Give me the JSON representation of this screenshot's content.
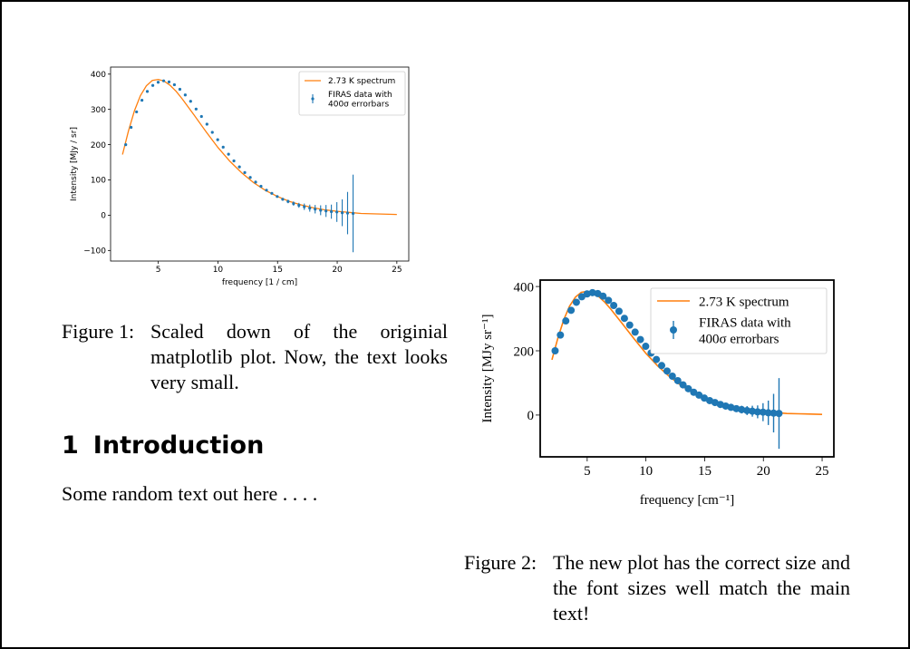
{
  "figure1": {
    "caption_label": "Figure 1:",
    "caption_text": "Scaled down of the originial matplotlib plot. Now, the text looks very small."
  },
  "figure2": {
    "caption_label": "Figure 2:",
    "caption_text": "The new plot has the correct size and the font sizes well match the main text!"
  },
  "section": {
    "number": "1",
    "title": "Introduction"
  },
  "body_text": "Some random text out here . . . .",
  "colors": {
    "spectrum": "#ff7f0e",
    "data": "#1f77b4"
  },
  "chart_data": [
    {
      "type": "line",
      "title": "",
      "xlabel": "frequency [1 / cm]",
      "ylabel": "Intensity [MJy / sr]",
      "xlim": [
        1,
        26
      ],
      "ylim": [
        -130,
        420
      ],
      "xticks": [
        5,
        10,
        15,
        20,
        25
      ],
      "yticks": [
        -100,
        0,
        100,
        200,
        300,
        400
      ],
      "xtick_labels": [
        "5",
        "10",
        "15",
        "20",
        "25"
      ],
      "ytick_labels": [
        "−100",
        "0",
        "100",
        "200",
        "300",
        "400"
      ],
      "legend_position": "top-right",
      "legend": [
        "2.73 K spectrum",
        "FIRAS data with 400σ errorbars"
      ],
      "series": [
        {
          "name": "2.73 K spectrum",
          "style": "line",
          "x": [
            2.0,
            2.5,
            3.0,
            3.5,
            4.0,
            4.5,
            5.0,
            5.5,
            6.0,
            6.5,
            7.0,
            8.0,
            9.0,
            10.0,
            11.0,
            12.0,
            13.0,
            14.0,
            15.0,
            16.0,
            17.0,
            18.0,
            19.0,
            20.0,
            21.0,
            22.0,
            23.0,
            24.0,
            25.0
          ],
          "y": [
            172,
            239,
            296,
            339,
            367,
            382,
            385,
            380,
            368,
            351,
            330,
            284,
            237,
            192,
            153,
            120,
            92,
            70,
            53,
            39,
            29,
            21,
            15,
            11,
            8,
            5,
            4,
            3,
            2
          ]
        },
        {
          "name": "FIRAS data with 400σ errorbars",
          "style": "errorbar",
          "x": [
            2.27,
            2.72,
            3.18,
            3.63,
            4.08,
            4.54,
            4.99,
            5.45,
            5.9,
            6.35,
            6.81,
            7.26,
            7.71,
            8.17,
            8.62,
            9.08,
            9.53,
            9.98,
            10.44,
            10.89,
            11.34,
            11.8,
            12.25,
            12.71,
            13.16,
            13.61,
            14.07,
            14.52,
            14.97,
            15.43,
            15.88,
            16.34,
            16.79,
            17.24,
            17.7,
            18.15,
            18.61,
            19.06,
            19.51,
            19.97,
            20.42,
            20.87,
            21.33
          ],
          "y": [
            200,
            249,
            293,
            326,
            351,
            368,
            377,
            381,
            378,
            370,
            357,
            341,
            323,
            301,
            280,
            258,
            235,
            214,
            193,
            173,
            154,
            137,
            121,
            107,
            94,
            82,
            71,
            62,
            53,
            45,
            39,
            33,
            28,
            24,
            20,
            17,
            14,
            12,
            10,
            9,
            7,
            6,
            5
          ],
          "err": [
            2,
            2,
            2,
            2,
            2,
            2,
            2,
            2,
            2,
            2,
            2,
            2,
            2,
            2,
            2,
            2,
            2,
            2,
            2,
            2,
            2,
            2,
            2,
            2,
            2,
            2,
            2,
            2,
            3,
            4,
            5,
            6,
            7,
            9,
            10,
            12,
            14,
            17,
            20,
            28,
            38,
            60,
            110
          ]
        }
      ]
    },
    {
      "type": "line",
      "title": "",
      "xlabel": "frequency [cm⁻¹]",
      "ylabel": "Intensity [MJy sr⁻¹]",
      "xlim": [
        1,
        26
      ],
      "ylim": [
        -130,
        420
      ],
      "xticks": [
        5,
        10,
        15,
        20,
        25
      ],
      "yticks": [
        0,
        200,
        400
      ],
      "xtick_labels": [
        "5",
        "10",
        "15",
        "20",
        "25"
      ],
      "ytick_labels": [
        "0",
        "200",
        "400"
      ],
      "legend_position": "top-right",
      "legend": [
        "2.73 K spectrum",
        "FIRAS data with 400σ errorbars"
      ],
      "series": [
        {
          "name": "2.73 K spectrum",
          "style": "line",
          "x": [
            2.0,
            2.5,
            3.0,
            3.5,
            4.0,
            4.5,
            5.0,
            5.5,
            6.0,
            6.5,
            7.0,
            8.0,
            9.0,
            10.0,
            11.0,
            12.0,
            13.0,
            14.0,
            15.0,
            16.0,
            17.0,
            18.0,
            19.0,
            20.0,
            21.0,
            22.0,
            23.0,
            24.0,
            25.0
          ],
          "y": [
            172,
            239,
            296,
            339,
            367,
            382,
            385,
            380,
            368,
            351,
            330,
            284,
            237,
            192,
            153,
            120,
            92,
            70,
            53,
            39,
            29,
            21,
            15,
            11,
            8,
            5,
            4,
            3,
            2
          ]
        },
        {
          "name": "FIRAS data with 400σ errorbars",
          "style": "errorbar",
          "x": [
            2.27,
            2.72,
            3.18,
            3.63,
            4.08,
            4.54,
            4.99,
            5.45,
            5.9,
            6.35,
            6.81,
            7.26,
            7.71,
            8.17,
            8.62,
            9.08,
            9.53,
            9.98,
            10.44,
            10.89,
            11.34,
            11.8,
            12.25,
            12.71,
            13.16,
            13.61,
            14.07,
            14.52,
            14.97,
            15.43,
            15.88,
            16.34,
            16.79,
            17.24,
            17.7,
            18.15,
            18.61,
            19.06,
            19.51,
            19.97,
            20.42,
            20.87,
            21.33
          ],
          "y": [
            200,
            249,
            293,
            326,
            351,
            368,
            377,
            381,
            378,
            370,
            357,
            341,
            323,
            301,
            280,
            258,
            235,
            214,
            193,
            173,
            154,
            137,
            121,
            107,
            94,
            82,
            71,
            62,
            53,
            45,
            39,
            33,
            28,
            24,
            20,
            17,
            14,
            12,
            10,
            9,
            7,
            6,
            5
          ],
          "err": [
            2,
            2,
            2,
            2,
            2,
            2,
            2,
            2,
            2,
            2,
            2,
            2,
            2,
            2,
            2,
            2,
            2,
            2,
            2,
            2,
            2,
            2,
            2,
            2,
            2,
            2,
            2,
            2,
            3,
            4,
            5,
            6,
            7,
            9,
            10,
            12,
            14,
            17,
            20,
            28,
            38,
            60,
            110
          ]
        }
      ]
    }
  ]
}
